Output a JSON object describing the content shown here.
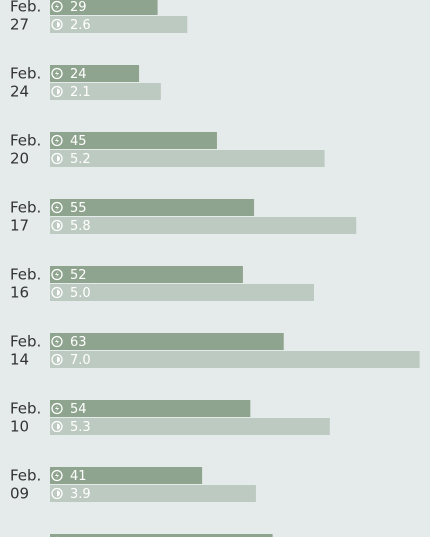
{
  "chart_data": {
    "type": "bar",
    "categories": [
      [
        "Feb.",
        "27"
      ],
      [
        "Feb.",
        "24"
      ],
      [
        "Feb.",
        "20"
      ],
      [
        "Feb.",
        "17"
      ],
      [
        "Feb.",
        "16"
      ],
      [
        "Feb.",
        "14"
      ],
      [
        "Feb.",
        "10"
      ],
      [
        "Feb.",
        "09"
      ],
      null
    ],
    "series": [
      {
        "color": "#8fa48e",
        "values": [
          29,
          24,
          45,
          55,
          52,
          63,
          54,
          41,
          60
        ]
      },
      {
        "color": "#bdcac1",
        "values": [
          2.6,
          2.1,
          5.2,
          5.8,
          5.0,
          7.0,
          5.3,
          3.9,
          null
        ],
        "value_labels": [
          "2.6",
          "2.1",
          "5.2",
          "5.8",
          "5.0",
          "7.0",
          "5.3",
          "3.9",
          null
        ]
      }
    ]
  }
}
